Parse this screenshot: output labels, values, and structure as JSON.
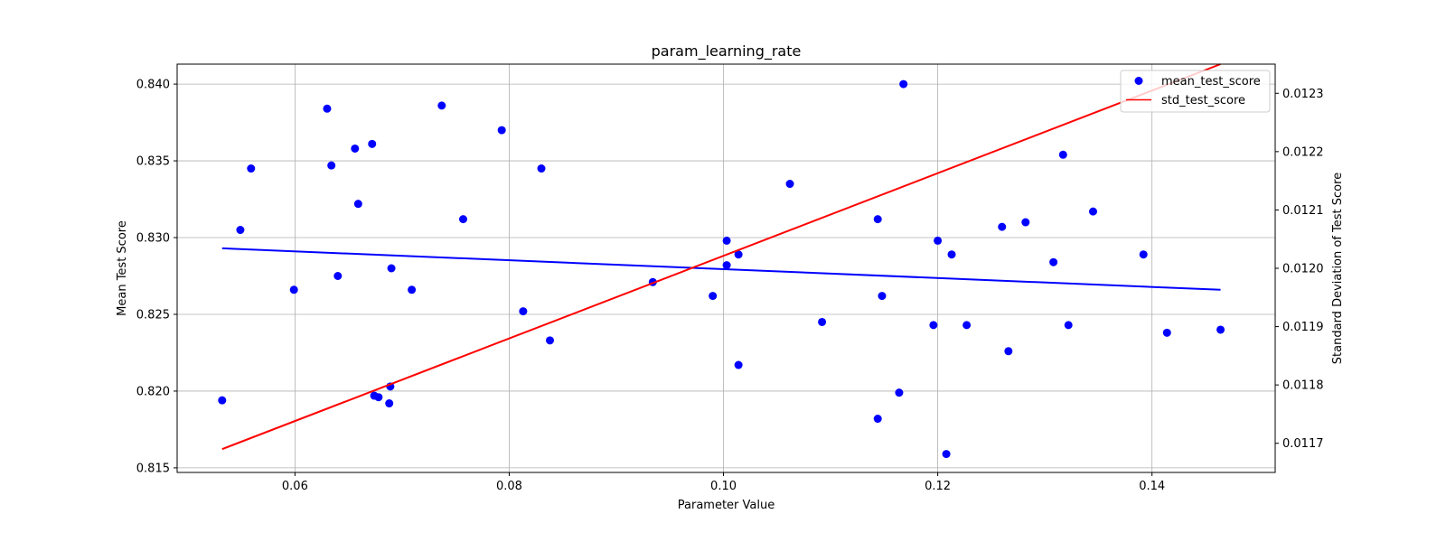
{
  "chart_data": {
    "type": "scatter",
    "title": "param_learning_rate",
    "xlabel": "Parameter Value",
    "ylabel": "Mean Test Score",
    "ylabel_right": "Standard Deviation of Test Score",
    "xlim": [
      0.049,
      0.1515
    ],
    "ylim": [
      0.8147,
      0.8413
    ],
    "ylim_right": [
      0.01165,
      0.01235
    ],
    "x_ticks": [
      0.06,
      0.08,
      0.1,
      0.12,
      0.14
    ],
    "x_tick_labels": [
      "0.06",
      "0.08",
      "0.10",
      "0.12",
      "0.14"
    ],
    "y_ticks": [
      0.815,
      0.82,
      0.825,
      0.83,
      0.835,
      0.84
    ],
    "y_tick_labels": [
      "0.815",
      "0.820",
      "0.825",
      "0.830",
      "0.835",
      "0.840"
    ],
    "y_right_ticks": [
      0.0117,
      0.0118,
      0.0119,
      0.012,
      0.0121,
      0.0122,
      0.0123
    ],
    "y_right_tick_labels": [
      "0.0117",
      "0.0118",
      "0.0119",
      "0.0120",
      "0.0121",
      "0.0122",
      "0.0123"
    ],
    "grid": true,
    "legend_position": "top-right",
    "series": [
      {
        "name": "mean_test_score",
        "kind": "scatter",
        "axis": "left",
        "color": "#0000ff",
        "points": [
          [
            0.0532,
            0.8194
          ],
          [
            0.0549,
            0.8305
          ],
          [
            0.0559,
            0.8345
          ],
          [
            0.0599,
            0.8266
          ],
          [
            0.063,
            0.8384
          ],
          [
            0.0634,
            0.8347
          ],
          [
            0.064,
            0.8275
          ],
          [
            0.0656,
            0.8358
          ],
          [
            0.0659,
            0.8322
          ],
          [
            0.0672,
            0.8361
          ],
          [
            0.0674,
            0.8197
          ],
          [
            0.0678,
            0.8196
          ],
          [
            0.0688,
            0.8192
          ],
          [
            0.0689,
            0.8203
          ],
          [
            0.069,
            0.828
          ],
          [
            0.0709,
            0.8266
          ],
          [
            0.0737,
            0.8386
          ],
          [
            0.0757,
            0.8312
          ],
          [
            0.0793,
            0.837
          ],
          [
            0.0813,
            0.8252
          ],
          [
            0.083,
            0.8345
          ],
          [
            0.0838,
            0.8233
          ],
          [
            0.0934,
            0.8271
          ],
          [
            0.099,
            0.8262
          ],
          [
            0.1003,
            0.8282
          ],
          [
            0.1003,
            0.8298
          ],
          [
            0.1014,
            0.8217
          ],
          [
            0.1014,
            0.8289
          ],
          [
            0.1062,
            0.8335
          ],
          [
            0.1092,
            0.8245
          ],
          [
            0.1144,
            0.8312
          ],
          [
            0.1144,
            0.8182
          ],
          [
            0.1148,
            0.8262
          ],
          [
            0.1164,
            0.8199
          ],
          [
            0.1168,
            0.84
          ],
          [
            0.1196,
            0.8243
          ],
          [
            0.12,
            0.8298
          ],
          [
            0.1208,
            0.8159
          ],
          [
            0.1213,
            0.8289
          ],
          [
            0.1227,
            0.8243
          ],
          [
            0.126,
            0.8307
          ],
          [
            0.1266,
            0.8226
          ],
          [
            0.1282,
            0.831
          ],
          [
            0.1308,
            0.8284
          ],
          [
            0.1317,
            0.8354
          ],
          [
            0.1322,
            0.8243
          ],
          [
            0.1345,
            0.8317
          ],
          [
            0.1392,
            0.8289
          ],
          [
            0.1414,
            0.8238
          ],
          [
            0.1464,
            0.824
          ]
        ]
      },
      {
        "name": "",
        "kind": "line",
        "axis": "left",
        "color": "#0000ff",
        "points": [
          [
            0.0532,
            0.8293
          ],
          [
            0.1464,
            0.8266
          ]
        ]
      },
      {
        "name": "std_test_score",
        "kind": "line",
        "axis": "right",
        "color": "#ff0000",
        "points": [
          [
            0.0532,
            0.01169
          ],
          [
            0.1464,
            0.01235
          ]
        ]
      }
    ]
  }
}
